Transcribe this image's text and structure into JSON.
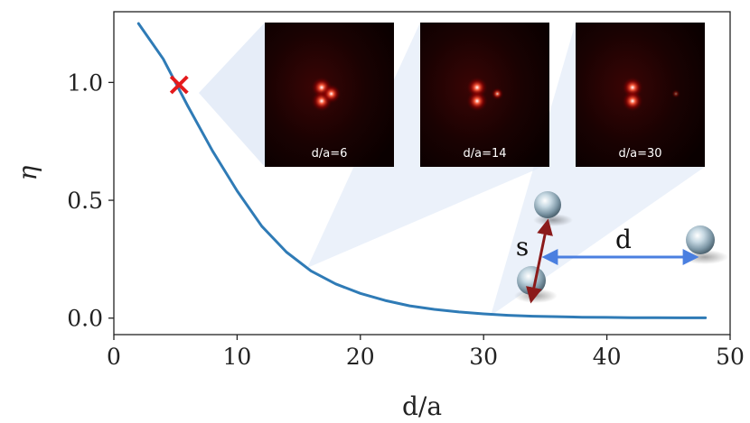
{
  "chart_data": {
    "type": "line",
    "xlabel": "d/a",
    "ylabel": "η",
    "xlim": [
      0,
      50
    ],
    "ylim": [
      -0.07,
      1.3
    ],
    "xticks": [
      0,
      10,
      20,
      30,
      40,
      50
    ],
    "yticks": [
      0.0,
      0.5,
      1.0
    ],
    "ytick_labels": [
      "0.0",
      "0.5",
      "1.0"
    ],
    "grid": false,
    "line_color": "#2f7bb6",
    "series": [
      {
        "x": [
          2,
          4,
          6,
          8,
          10,
          12,
          14,
          16,
          18,
          20,
          22,
          24,
          26,
          28,
          30,
          32,
          34,
          36,
          38,
          40,
          42,
          44,
          46,
          48
        ],
        "values": [
          1.25,
          1.1,
          0.9,
          0.71,
          0.54,
          0.39,
          0.28,
          0.2,
          0.145,
          0.105,
          0.075,
          0.052,
          0.037,
          0.026,
          0.018,
          0.012,
          0.008,
          0.006,
          0.004,
          0.003,
          0.002,
          0.0015,
          0.001,
          0.001
        ]
      }
    ],
    "marker": {
      "x": 5.3,
      "y": 0.99,
      "symbol": "x",
      "color": "#e41a1c"
    },
    "insets": [
      {
        "label": "d/a=6",
        "d": 6
      },
      {
        "label": "d/a=14",
        "d": 14
      },
      {
        "label": "d/a=30",
        "d": 30
      }
    ],
    "schematic": {
      "s_label": "s",
      "d_label": "d",
      "s_arrow_color": "#8b1a1a",
      "d_arrow_color": "#4a7fe0"
    }
  }
}
